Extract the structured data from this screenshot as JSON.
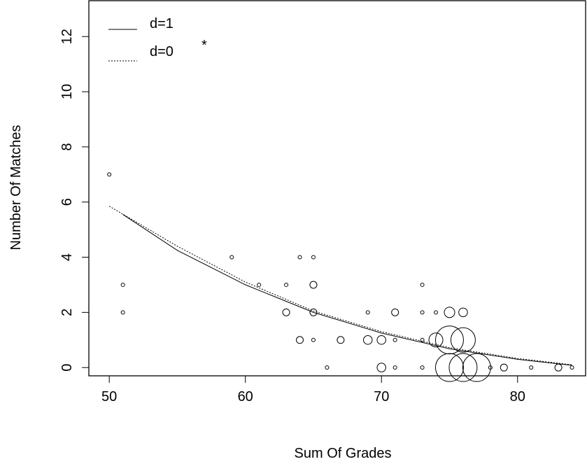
{
  "chart_data": {
    "type": "scatter",
    "xlabel": "Sum Of Grades",
    "ylabel": "Number Of Matches",
    "xlim": [
      48.5,
      85
    ],
    "ylim": [
      -0.3,
      13.3
    ],
    "xticks": [
      50,
      60,
      70,
      80
    ],
    "yticks": [
      0,
      2,
      4,
      6,
      8,
      10,
      12
    ],
    "marker_note": "*",
    "points": [
      {
        "x": 50,
        "y": 7,
        "r": 1
      },
      {
        "x": 51,
        "y": 3,
        "r": 1
      },
      {
        "x": 51,
        "y": 2,
        "r": 1
      },
      {
        "x": 59,
        "y": 4,
        "r": 1
      },
      {
        "x": 61,
        "y": 3,
        "r": 1
      },
      {
        "x": 63,
        "y": 3,
        "r": 1
      },
      {
        "x": 63,
        "y": 2,
        "r": 2
      },
      {
        "x": 64,
        "y": 4,
        "r": 1
      },
      {
        "x": 64,
        "y": 1,
        "r": 2
      },
      {
        "x": 65,
        "y": 4,
        "r": 1
      },
      {
        "x": 65,
        "y": 3,
        "r": 2
      },
      {
        "x": 65,
        "y": 2,
        "r": 2
      },
      {
        "x": 65,
        "y": 1,
        "r": 1
      },
      {
        "x": 66,
        "y": 0,
        "r": 1
      },
      {
        "x": 67,
        "y": 1,
        "r": 2
      },
      {
        "x": 69,
        "y": 2,
        "r": 1
      },
      {
        "x": 69,
        "y": 1,
        "r": 2.5
      },
      {
        "x": 70,
        "y": 1,
        "r": 2.5
      },
      {
        "x": 70,
        "y": 0,
        "r": 2.5
      },
      {
        "x": 71,
        "y": 2,
        "r": 2
      },
      {
        "x": 71,
        "y": 1,
        "r": 1
      },
      {
        "x": 71,
        "y": 0,
        "r": 1
      },
      {
        "x": 73,
        "y": 3,
        "r": 1
      },
      {
        "x": 73,
        "y": 2,
        "r": 1
      },
      {
        "x": 73,
        "y": 1,
        "r": 1
      },
      {
        "x": 73,
        "y": 0,
        "r": 1
      },
      {
        "x": 74,
        "y": 2,
        "r": 1
      },
      {
        "x": 74,
        "y": 1,
        "r": 4
      },
      {
        "x": 75,
        "y": 2,
        "r": 3
      },
      {
        "x": 75,
        "y": 1,
        "r": 8
      },
      {
        "x": 75,
        "y": 0,
        "r": 8
      },
      {
        "x": 76,
        "y": 2,
        "r": 2.5
      },
      {
        "x": 76,
        "y": 1,
        "r": 7
      },
      {
        "x": 76,
        "y": 0,
        "r": 8
      },
      {
        "x": 77,
        "y": 0,
        "r": 8
      },
      {
        "x": 78,
        "y": 0,
        "r": 1
      },
      {
        "x": 79,
        "y": 0,
        "r": 2
      },
      {
        "x": 81,
        "y": 0,
        "r": 1
      },
      {
        "x": 83,
        "y": 0,
        "r": 2
      },
      {
        "x": 84,
        "y": 0,
        "r": 1
      }
    ],
    "series": [
      {
        "name": "d=1",
        "style": "solid",
        "x": [
          51,
          55,
          60,
          65,
          70,
          75,
          80,
          84
        ],
        "y": [
          5.55,
          4.25,
          3.0,
          2.0,
          1.25,
          0.68,
          0.3,
          0.08
        ]
      },
      {
        "name": "d=0",
        "style": "dotted",
        "x": [
          50,
          55,
          60,
          65,
          70,
          75,
          80,
          84
        ],
        "y": [
          5.85,
          4.4,
          3.1,
          2.05,
          1.3,
          0.72,
          0.33,
          0.1
        ]
      }
    ],
    "legend": {
      "position": "top-left"
    }
  }
}
